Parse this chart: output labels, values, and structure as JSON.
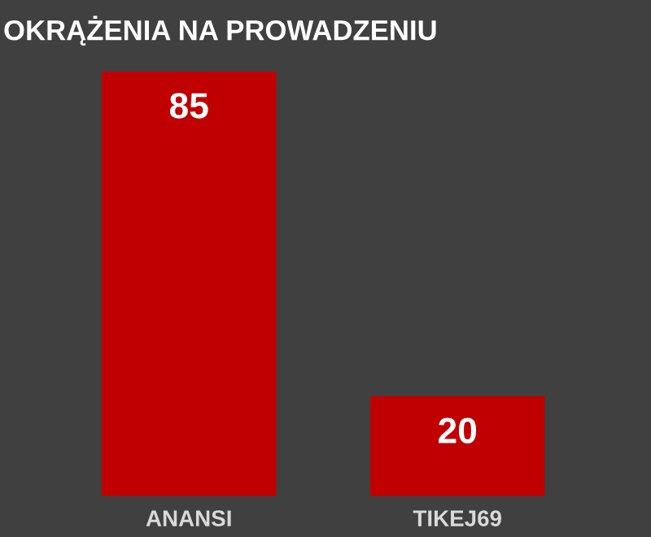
{
  "chart_data": {
    "type": "bar",
    "title": "OKRĄŻENIA NA PROWADZENIU",
    "categories": [
      "ANANSI",
      "TIKEJ69"
    ],
    "values": [
      85,
      20
    ],
    "color": "#c00000",
    "data_labels": true,
    "grid": false,
    "legend": false
  }
}
